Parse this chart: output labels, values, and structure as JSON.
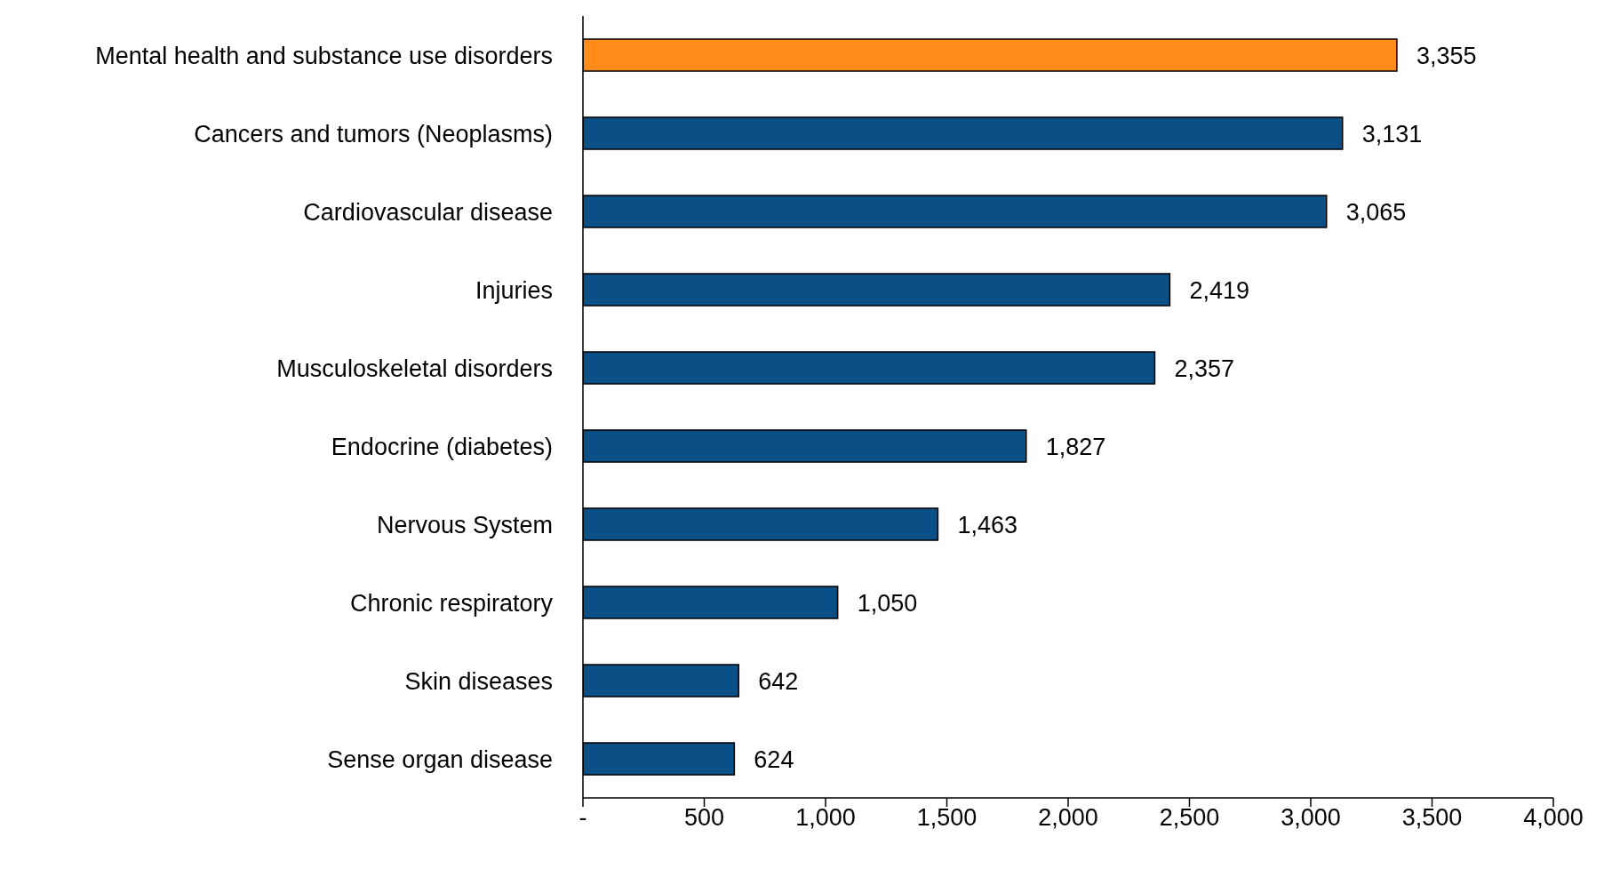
{
  "chart_data": {
    "type": "bar",
    "orientation": "horizontal",
    "categories": [
      "Mental health and substance use disorders",
      "Cancers and tumors (Neoplasms)",
      "Cardiovascular disease",
      "Injuries",
      "Musculoskeletal disorders",
      "Endocrine (diabetes)",
      "Nervous System",
      "Chronic respiratory",
      "Skin diseases",
      "Sense organ disease"
    ],
    "values": [
      3355,
      3131,
      3065,
      2419,
      2357,
      1827,
      1463,
      1050,
      642,
      624
    ],
    "colors": [
      "#ff8c1a",
      "#0a4f86",
      "#0a4f86",
      "#0a4f86",
      "#0a4f86",
      "#0a4f86",
      "#0a4f86",
      "#0a4f86",
      "#0a4f86",
      "#0a4f86"
    ],
    "xlim": [
      0,
      4000
    ],
    "xticks": [
      {
        "value": 0,
        "label": "-"
      },
      500,
      {
        "value": 1000,
        "label": "1,000"
      },
      {
        "value": 1500,
        "label": "1,500"
      },
      {
        "value": 2000,
        "label": "2,000"
      },
      {
        "value": 2500,
        "label": "2,500"
      },
      {
        "value": 3000,
        "label": "3,000"
      },
      {
        "value": 3500,
        "label": "3,500"
      },
      {
        "value": 4000,
        "label": "4,000"
      }
    ],
    "value_labels": [
      "3,355",
      "3,131",
      "3,065",
      "2,419",
      "2,357",
      "1,827",
      "1,463",
      "1,050",
      "642",
      "624"
    ],
    "grid": false,
    "legend": false
  }
}
